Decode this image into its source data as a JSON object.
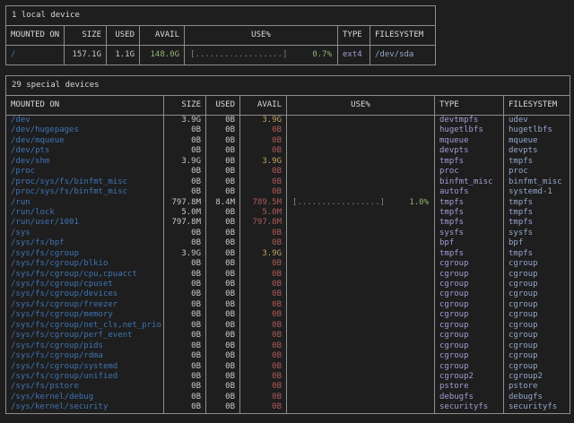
{
  "colors": {
    "background": "#1e1e1e",
    "border": "#8d8d8d",
    "heading_text": "#d9d9d9",
    "mount_point": "#3f74b4",
    "value_text": "#c9c9c9",
    "avail_green": "#8fb573",
    "avail_yellow": "#c2a264",
    "avail_red": "#ae5a5a",
    "usage_green": "#8fb573",
    "bar_dim": "#7c857c",
    "type_text": "#a79bd4",
    "filesystem_text": "#95a6cc"
  },
  "local_table": {
    "title": "1 local device",
    "columns": [
      "MOUNTED ON",
      "SIZE",
      "USED",
      "AVAIL",
      "USE%",
      "TYPE",
      "FILESYSTEM"
    ],
    "rows": [
      {
        "mounted_on": "/",
        "size": "157.1G",
        "used": "1.1G",
        "avail": "148.0G",
        "avail_level": "green",
        "usage_bar": "[..................]",
        "usage_pct": "0.7%",
        "type": "ext4",
        "filesystem": "/dev/sda"
      }
    ]
  },
  "special_table": {
    "title": "29 special devices",
    "columns": [
      "MOUNTED ON",
      "SIZE",
      "USED",
      "AVAIL",
      "USE%",
      "TYPE",
      "FILESYSTEM"
    ],
    "rows": [
      {
        "mounted_on": "/dev",
        "size": "3.9G",
        "used": "0B",
        "avail": "3.9G",
        "avail_level": "yellow",
        "usage_bar": "",
        "usage_pct": "",
        "type": "devtmpfs",
        "filesystem": "udev"
      },
      {
        "mounted_on": "/dev/hugepages",
        "size": "0B",
        "used": "0B",
        "avail": "0B",
        "avail_level": "red",
        "usage_bar": "",
        "usage_pct": "",
        "type": "hugetlbfs",
        "filesystem": "hugetlbfs"
      },
      {
        "mounted_on": "/dev/mqueue",
        "size": "0B",
        "used": "0B",
        "avail": "0B",
        "avail_level": "red",
        "usage_bar": "",
        "usage_pct": "",
        "type": "mqueue",
        "filesystem": "mqueue"
      },
      {
        "mounted_on": "/dev/pts",
        "size": "0B",
        "used": "0B",
        "avail": "0B",
        "avail_level": "red",
        "usage_bar": "",
        "usage_pct": "",
        "type": "devpts",
        "filesystem": "devpts"
      },
      {
        "mounted_on": "/dev/shm",
        "size": "3.9G",
        "used": "0B",
        "avail": "3.9G",
        "avail_level": "yellow",
        "usage_bar": "",
        "usage_pct": "",
        "type": "tmpfs",
        "filesystem": "tmpfs"
      },
      {
        "mounted_on": "/proc",
        "size": "0B",
        "used": "0B",
        "avail": "0B",
        "avail_level": "red",
        "usage_bar": "",
        "usage_pct": "",
        "type": "proc",
        "filesystem": "proc"
      },
      {
        "mounted_on": "/proc/sys/fs/binfmt_misc",
        "size": "0B",
        "used": "0B",
        "avail": "0B",
        "avail_level": "red",
        "usage_bar": "",
        "usage_pct": "",
        "type": "binfmt_misc",
        "filesystem": "binfmt_misc"
      },
      {
        "mounted_on": "/proc/sys/fs/binfmt_misc",
        "size": "0B",
        "used": "0B",
        "avail": "0B",
        "avail_level": "red",
        "usage_bar": "",
        "usage_pct": "",
        "type": "autofs",
        "filesystem": "systemd-1"
      },
      {
        "mounted_on": "/run",
        "size": "797.8M",
        "used": "8.4M",
        "avail": "789.5M",
        "avail_level": "red",
        "usage_bar": "[.................]",
        "usage_pct": "1.0%",
        "type": "tmpfs",
        "filesystem": "tmpfs"
      },
      {
        "mounted_on": "/run/lock",
        "size": "5.0M",
        "used": "0B",
        "avail": "5.0M",
        "avail_level": "red",
        "usage_bar": "",
        "usage_pct": "",
        "type": "tmpfs",
        "filesystem": "tmpfs"
      },
      {
        "mounted_on": "/run/user/1001",
        "size": "797.8M",
        "used": "0B",
        "avail": "797.8M",
        "avail_level": "red",
        "usage_bar": "",
        "usage_pct": "",
        "type": "tmpfs",
        "filesystem": "tmpfs"
      },
      {
        "mounted_on": "/sys",
        "size": "0B",
        "used": "0B",
        "avail": "0B",
        "avail_level": "red",
        "usage_bar": "",
        "usage_pct": "",
        "type": "sysfs",
        "filesystem": "sysfs"
      },
      {
        "mounted_on": "/sys/fs/bpf",
        "size": "0B",
        "used": "0B",
        "avail": "0B",
        "avail_level": "red",
        "usage_bar": "",
        "usage_pct": "",
        "type": "bpf",
        "filesystem": "bpf"
      },
      {
        "mounted_on": "/sys/fs/cgroup",
        "size": "3.9G",
        "used": "0B",
        "avail": "3.9G",
        "avail_level": "yellow",
        "usage_bar": "",
        "usage_pct": "",
        "type": "tmpfs",
        "filesystem": "tmpfs"
      },
      {
        "mounted_on": "/sys/fs/cgroup/blkio",
        "size": "0B",
        "used": "0B",
        "avail": "0B",
        "avail_level": "red",
        "usage_bar": "",
        "usage_pct": "",
        "type": "cgroup",
        "filesystem": "cgroup"
      },
      {
        "mounted_on": "/sys/fs/cgroup/cpu,cpuacct",
        "size": "0B",
        "used": "0B",
        "avail": "0B",
        "avail_level": "red",
        "usage_bar": "",
        "usage_pct": "",
        "type": "cgroup",
        "filesystem": "cgroup"
      },
      {
        "mounted_on": "/sys/fs/cgroup/cpuset",
        "size": "0B",
        "used": "0B",
        "avail": "0B",
        "avail_level": "red",
        "usage_bar": "",
        "usage_pct": "",
        "type": "cgroup",
        "filesystem": "cgroup"
      },
      {
        "mounted_on": "/sys/fs/cgroup/devices",
        "size": "0B",
        "used": "0B",
        "avail": "0B",
        "avail_level": "red",
        "usage_bar": "",
        "usage_pct": "",
        "type": "cgroup",
        "filesystem": "cgroup"
      },
      {
        "mounted_on": "/sys/fs/cgroup/freezer",
        "size": "0B",
        "used": "0B",
        "avail": "0B",
        "avail_level": "red",
        "usage_bar": "",
        "usage_pct": "",
        "type": "cgroup",
        "filesystem": "cgroup"
      },
      {
        "mounted_on": "/sys/fs/cgroup/memory",
        "size": "0B",
        "used": "0B",
        "avail": "0B",
        "avail_level": "red",
        "usage_bar": "",
        "usage_pct": "",
        "type": "cgroup",
        "filesystem": "cgroup"
      },
      {
        "mounted_on": "/sys/fs/cgroup/net_cls,net_prio",
        "size": "0B",
        "used": "0B",
        "avail": "0B",
        "avail_level": "red",
        "usage_bar": "",
        "usage_pct": "",
        "type": "cgroup",
        "filesystem": "cgroup"
      },
      {
        "mounted_on": "/sys/fs/cgroup/perf_event",
        "size": "0B",
        "used": "0B",
        "avail": "0B",
        "avail_level": "red",
        "usage_bar": "",
        "usage_pct": "",
        "type": "cgroup",
        "filesystem": "cgroup"
      },
      {
        "mounted_on": "/sys/fs/cgroup/pids",
        "size": "0B",
        "used": "0B",
        "avail": "0B",
        "avail_level": "red",
        "usage_bar": "",
        "usage_pct": "",
        "type": "cgroup",
        "filesystem": "cgroup"
      },
      {
        "mounted_on": "/sys/fs/cgroup/rdma",
        "size": "0B",
        "used": "0B",
        "avail": "0B",
        "avail_level": "red",
        "usage_bar": "",
        "usage_pct": "",
        "type": "cgroup",
        "filesystem": "cgroup"
      },
      {
        "mounted_on": "/sys/fs/cgroup/systemd",
        "size": "0B",
        "used": "0B",
        "avail": "0B",
        "avail_level": "red",
        "usage_bar": "",
        "usage_pct": "",
        "type": "cgroup",
        "filesystem": "cgroup"
      },
      {
        "mounted_on": "/sys/fs/cgroup/unified",
        "size": "0B",
        "used": "0B",
        "avail": "0B",
        "avail_level": "red",
        "usage_bar": "",
        "usage_pct": "",
        "type": "cgroup2",
        "filesystem": "cgroup2"
      },
      {
        "mounted_on": "/sys/fs/pstore",
        "size": "0B",
        "used": "0B",
        "avail": "0B",
        "avail_level": "red",
        "usage_bar": "",
        "usage_pct": "",
        "type": "pstore",
        "filesystem": "pstore"
      },
      {
        "mounted_on": "/sys/kernel/debug",
        "size": "0B",
        "used": "0B",
        "avail": "0B",
        "avail_level": "red",
        "usage_bar": "",
        "usage_pct": "",
        "type": "debugfs",
        "filesystem": "debugfs"
      },
      {
        "mounted_on": "/sys/kernel/security",
        "size": "0B",
        "used": "0B",
        "avail": "0B",
        "avail_level": "red",
        "usage_bar": "",
        "usage_pct": "",
        "type": "securityfs",
        "filesystem": "securityfs"
      }
    ]
  }
}
